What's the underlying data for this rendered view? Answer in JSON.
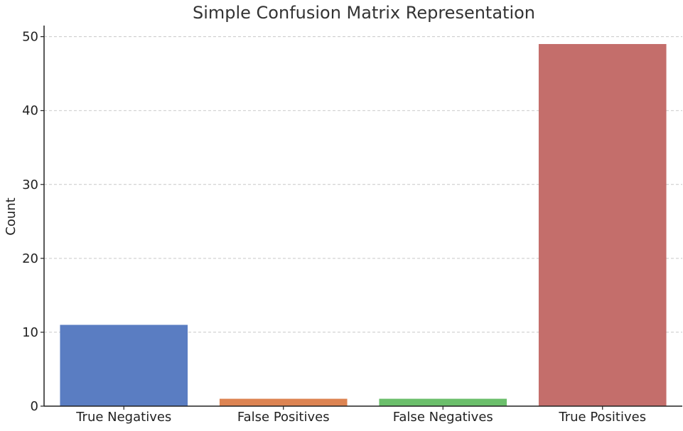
{
  "chart_data": {
    "type": "bar",
    "title": "Simple Confusion Matrix Representation",
    "xlabel": "",
    "ylabel": "Count",
    "categories": [
      "True Negatives",
      "False Positives",
      "False Negatives",
      "True Positives"
    ],
    "values": [
      11,
      1,
      1,
      49
    ],
    "colors": [
      "#5a7dc2",
      "#dd8452",
      "#6bbf6b",
      "#c46e6b"
    ],
    "ylim": [
      0,
      51.5
    ],
    "yticks": [
      0,
      10,
      20,
      30,
      40,
      50
    ],
    "grid": true,
    "legend": "none"
  }
}
